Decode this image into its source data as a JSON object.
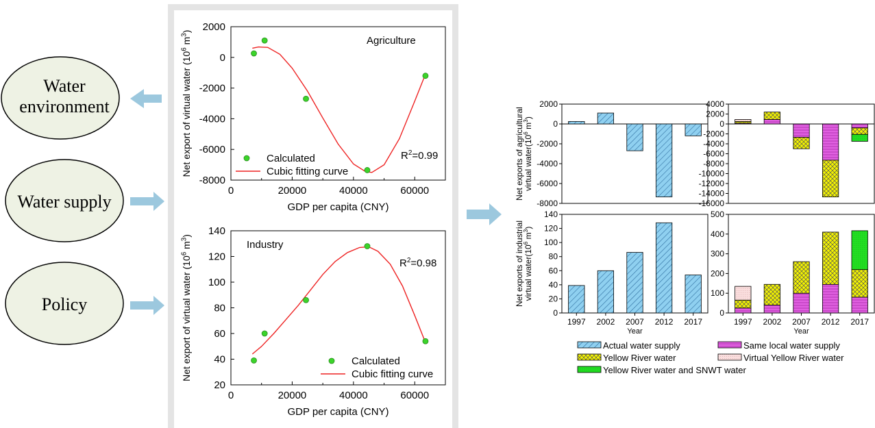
{
  "left_labels": {
    "water_environment": [
      "Water",
      "environment"
    ],
    "water_supply": "Water supply",
    "policy": "Policy"
  },
  "colors": {
    "ellipse_fill": "#eef2e4",
    "arrow": "#9cc8de",
    "point": "#3bd42a",
    "curve": "#ee2222",
    "blue_hatch": "#8fd0f0",
    "pink": "#e060e0",
    "yellow": "#f4f400",
    "light_pink": "#fadede",
    "green": "#22dd22"
  },
  "chart_data": [
    {
      "type": "scatter",
      "title": "Agriculture",
      "xlabel": "GDP per capita (CNY)",
      "ylabel": "Net export of virtual water (10",
      "ylabel_sup": "6",
      "ylabel_unit": " m",
      "ylabel_unit_sup": "3",
      "ylabel_end": ")",
      "xlim": [
        0,
        70000
      ],
      "ylim": [
        -8000,
        2000
      ],
      "xticks": [
        0,
        20000,
        40000,
        60000
      ],
      "yticks": [
        -8000,
        -6000,
        -4000,
        -2000,
        0,
        2000
      ],
      "r2": "R",
      "r2_sup": "2",
      "r2_val": "=0.99",
      "points": [
        {
          "x": 7500,
          "y": 260
        },
        {
          "x": 11000,
          "y": 1100
        },
        {
          "x": 24500,
          "y": -2700
        },
        {
          "x": 44500,
          "y": -7350
        },
        {
          "x": 63500,
          "y": -1200
        }
      ],
      "curve": [
        [
          7000,
          600
        ],
        [
          9000,
          680
        ],
        [
          12000,
          650
        ],
        [
          16000,
          200
        ],
        [
          20000,
          -700
        ],
        [
          25000,
          -2200
        ],
        [
          30000,
          -3950
        ],
        [
          35000,
          -5650
        ],
        [
          40000,
          -6950
        ],
        [
          44000,
          -7450
        ],
        [
          46000,
          -7500
        ],
        [
          50000,
          -7000
        ],
        [
          55000,
          -5300
        ],
        [
          60000,
          -2850
        ],
        [
          63500,
          -1100
        ]
      ],
      "legend": {
        "points_label": "Calculated",
        "curve_label": "Cubic fitting curve"
      }
    },
    {
      "type": "scatter",
      "title": "Industry",
      "xlabel": "GDP per capita (CNY)",
      "ylabel": "Net export of virtual water (10",
      "ylabel_sup": "6",
      "ylabel_unit": " m",
      "ylabel_unit_sup": "3",
      "ylabel_end": ")",
      "xlim": [
        0,
        70000
      ],
      "ylim": [
        20,
        140
      ],
      "xticks": [
        0,
        20000,
        40000,
        60000
      ],
      "yticks": [
        20,
        40,
        60,
        80,
        100,
        120,
        140
      ],
      "r2": "R",
      "r2_sup": "2",
      "r2_val": "=0.98",
      "points": [
        {
          "x": 7500,
          "y": 39
        },
        {
          "x": 11000,
          "y": 60
        },
        {
          "x": 24500,
          "y": 86
        },
        {
          "x": 44500,
          "y": 128
        },
        {
          "x": 63500,
          "y": 54
        }
      ],
      "curve": [
        [
          7000,
          44
        ],
        [
          10000,
          50
        ],
        [
          14000,
          60
        ],
        [
          18000,
          71
        ],
        [
          22000,
          82
        ],
        [
          26000,
          94
        ],
        [
          30000,
          106
        ],
        [
          34000,
          116
        ],
        [
          38000,
          123
        ],
        [
          42000,
          127
        ],
        [
          45000,
          127.5
        ],
        [
          48000,
          124
        ],
        [
          52000,
          114
        ],
        [
          56000,
          97
        ],
        [
          60000,
          74
        ],
        [
          63500,
          53
        ]
      ],
      "legend": {
        "points_label": "Calculated",
        "curve_label": "Cubic fitting curve"
      }
    },
    {
      "type": "bar",
      "ylabel_lines": [
        "Net exports of agricultural",
        "virtual water(10"
      ],
      "ylabel_sup": "6",
      "ylabel_unit": " m",
      "ylabel_unit_sup": "3",
      "ylabel_end": ")",
      "ylim": [
        -8000,
        2000
      ],
      "yticks": [
        -8000,
        -6000,
        -4000,
        -2000,
        0,
        2000
      ],
      "categories": [
        "1997",
        "2002",
        "2007",
        "2012",
        "2017"
      ],
      "series": [
        {
          "name": "Actual water supply",
          "values": [
            250,
            1100,
            -2700,
            -7350,
            -1200
          ]
        }
      ]
    },
    {
      "type": "bar",
      "stacked": true,
      "ylim": [
        -16000,
        4000
      ],
      "yticks": [
        -16000,
        -14000,
        -12000,
        -10000,
        -8000,
        -6000,
        -4000,
        -2000,
        0,
        2000,
        4000
      ],
      "categories": [
        "1997",
        "2002",
        "2007",
        "2012",
        "2017"
      ],
      "series": [
        {
          "name": "Same local water supply",
          "values": [
            150,
            900,
            -2700,
            -7300,
            -800
          ]
        },
        {
          "name": "Yellow River water",
          "values": [
            350,
            1500,
            -2300,
            -7400,
            -1300
          ]
        },
        {
          "name": "Virtual Yellow River water",
          "values": [
            400,
            0,
            0,
            0,
            0
          ]
        },
        {
          "name": "Yellow River water and SNWT water",
          "values": [
            0,
            0,
            0,
            0,
            -1400
          ]
        }
      ]
    },
    {
      "type": "bar",
      "ylabel_lines": [
        "Net exports of industrial",
        "virtual water(10"
      ],
      "ylabel_sup": "6",
      "ylabel_unit": " m",
      "ylabel_unit_sup": "3",
      "ylabel_end": ")",
      "xlabel": "Year",
      "ylim": [
        0,
        140
      ],
      "yticks": [
        0,
        20,
        40,
        60,
        80,
        100,
        120,
        140
      ],
      "categories": [
        "1997",
        "2002",
        "2007",
        "2012",
        "2017"
      ],
      "series": [
        {
          "name": "Actual water supply",
          "values": [
            39,
            60,
            86,
            128,
            54
          ]
        }
      ]
    },
    {
      "type": "bar",
      "stacked": true,
      "xlabel": "Year",
      "ylim": [
        0,
        500
      ],
      "yticks": [
        0,
        100,
        200,
        300,
        400,
        500
      ],
      "categories": [
        "1997",
        "2002",
        "2007",
        "2012",
        "2017"
      ],
      "series": [
        {
          "name": "Same local water supply",
          "values": [
            25,
            40,
            100,
            145,
            80
          ]
        },
        {
          "name": "Yellow River water",
          "values": [
            40,
            105,
            160,
            265,
            140
          ]
        },
        {
          "name": "Virtual Yellow River water",
          "values": [
            70,
            0,
            0,
            0,
            0
          ]
        },
        {
          "name": "Yellow River water and SNWT water",
          "values": [
            0,
            0,
            0,
            0,
            197
          ]
        }
      ]
    }
  ],
  "bottom_legend": [
    {
      "label": "Actual water supply",
      "kind": "blue"
    },
    {
      "label": "Same local water supply",
      "kind": "pink"
    },
    {
      "label": "Yellow River water",
      "kind": "yellow"
    },
    {
      "label": "Virtual Yellow River water",
      "kind": "lightpink"
    },
    {
      "label": "Yellow River water and SNWT water",
      "kind": "green"
    }
  ]
}
